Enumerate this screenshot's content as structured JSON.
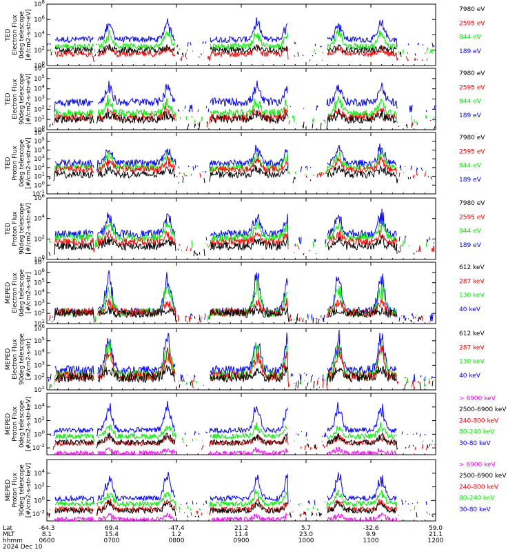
{
  "colors": {
    "black": "#000000",
    "red": "#ff0000",
    "green": "#00ee00",
    "blue": "#0000ff",
    "magenta": "#ff00ff"
  },
  "footer": {
    "row_labels": [
      "Lat",
      "MLT",
      "hhmm",
      "2024 Dec 10"
    ],
    "columns": [
      {
        "lat": "-64.3",
        "mlt": "8.1",
        "hhmm": "0600"
      },
      {
        "lat": "69.4",
        "mlt": "15.4",
        "hhmm": "0700"
      },
      {
        "lat": "-47.4",
        "mlt": "1.2",
        "hhmm": "0800"
      },
      {
        "lat": "21.2",
        "mlt": "11.4",
        "hhmm": "0900"
      },
      {
        "lat": "5.7",
        "mlt": "23.0",
        "hhmm": "1000"
      },
      {
        "lat": "-32.6",
        "mlt": "9.9",
        "hhmm": "1100"
      },
      {
        "lat": "59.0",
        "mlt": "21.1",
        "hhmm": "1200"
      }
    ]
  },
  "chart_data": [
    {
      "type": "line",
      "ylabel": [
        "TED",
        "Electron Flux",
        "0deg telescope",
        "[#/cm2-s-str-eV]"
      ],
      "ylim": [
        1,
        100000000
      ],
      "yscale": "log",
      "yticks": [
        {
          "exp": "0"
        },
        {
          "exp": "2"
        },
        {
          "exp": "4"
        },
        {
          "exp": "6"
        },
        {
          "exp": "8"
        }
      ],
      "series": [
        {
          "name": "7980 eV",
          "color": "black"
        },
        {
          "name": "2595 eV",
          "color": "red"
        },
        {
          "name": "844 eV",
          "color": "green"
        },
        {
          "name": "189 eV",
          "color": "blue"
        }
      ],
      "baseline": [
        2.0,
        1.5,
        2.5,
        3.4
      ],
      "bursts": [
        0.4,
        0.8,
        1.8,
        2.2
      ],
      "xrange": [
        "0600",
        "1200"
      ]
    },
    {
      "type": "line",
      "ylabel": [
        "TED",
        "Electron Flux",
        "90deg telescope",
        "[#/cm2-s-str-eV]"
      ],
      "ylim": [
        1,
        1000000
      ],
      "yscale": "log",
      "yticks": [
        {
          "exp": "0"
        },
        {
          "exp": "1"
        },
        {
          "exp": "2"
        },
        {
          "exp": "3"
        },
        {
          "exp": "4"
        },
        {
          "exp": "5"
        },
        {
          "exp": "6"
        }
      ],
      "series": [
        {
          "name": "7980 eV",
          "color": "black"
        },
        {
          "name": "2595 eV",
          "color": "red"
        },
        {
          "name": "844 eV",
          "color": "green"
        },
        {
          "name": "189 eV",
          "color": "blue"
        }
      ],
      "baseline": [
        1.0,
        1.2,
        1.6,
        2.7
      ],
      "bursts": [
        0.5,
        0.8,
        1.3,
        1.5
      ],
      "xrange": [
        "0600",
        "1200"
      ]
    },
    {
      "type": "line",
      "ylabel": [
        "TED",
        "Proton Flux",
        "0deg telescope",
        "[#/cm2-s-str-eV]"
      ],
      "ylim": [
        0.1,
        1000000
      ],
      "yscale": "log",
      "yticks": [
        {
          "exp": "-1"
        },
        {
          "exp": "0"
        },
        {
          "exp": "1"
        },
        {
          "exp": "2"
        },
        {
          "exp": "3"
        },
        {
          "exp": "4"
        },
        {
          "exp": "5"
        },
        {
          "exp": "6"
        }
      ],
      "series": [
        {
          "name": "7980 eV",
          "color": "black"
        },
        {
          "name": "2595 eV",
          "color": "red"
        },
        {
          "name": "844 eV",
          "color": "green"
        },
        {
          "name": "189 eV",
          "color": "blue"
        }
      ],
      "baseline": [
        1.2,
        1.8,
        2.0,
        2.5
      ],
      "bursts": [
        0.8,
        1.0,
        1.6,
        1.8
      ],
      "xrange": [
        "0600",
        "1200"
      ]
    },
    {
      "type": "line",
      "ylabel": [
        "TED",
        "Proton Flux",
        "90deg telescope",
        "[#/cm2-s-str-eV]"
      ],
      "ylim": [
        1,
        1000000
      ],
      "yscale": "log",
      "yticks": [
        {
          "exp": "0"
        },
        {
          "exp": "2"
        },
        {
          "exp": "4"
        },
        {
          "exp": "6"
        }
      ],
      "series": [
        {
          "name": "7980 eV",
          "color": "black"
        },
        {
          "name": "2595 eV",
          "color": "red"
        },
        {
          "name": "844 eV",
          "color": "green"
        },
        {
          "name": "189 eV",
          "color": "blue"
        }
      ],
      "baseline": [
        1.3,
        1.7,
        2.1,
        2.5
      ],
      "bursts": [
        0.6,
        0.8,
        1.4,
        1.8
      ],
      "xrange": [
        "0600",
        "1200"
      ]
    },
    {
      "type": "line",
      "ylabel": [
        "MEPED",
        "Electron Flux",
        "0deg telescope",
        "[#/cm2-s-str]"
      ],
      "ylim": [
        10,
        10000000
      ],
      "yscale": "log",
      "yticks": [
        {
          "exp": "1"
        },
        {
          "exp": "2"
        },
        {
          "exp": "3"
        },
        {
          "exp": "4"
        },
        {
          "exp": "5"
        },
        {
          "exp": "6"
        },
        {
          "exp": "7"
        }
      ],
      "series": [
        {
          "name": "612 keV",
          "color": "black"
        },
        {
          "name": "287 keV",
          "color": "red"
        },
        {
          "name": "130 keV",
          "color": "green"
        },
        {
          "name": "40 keV",
          "color": "blue"
        }
      ],
      "baseline": [
        2.0,
        2.1,
        2.1,
        2.2
      ],
      "bursts": [
        0.3,
        1.0,
        2.5,
        3.5
      ],
      "xrange": [
        "0600",
        "1200"
      ]
    },
    {
      "type": "line",
      "ylabel": [
        "MEPED",
        "Electron Flux",
        "90deg telescope",
        "[#/cm2-s-str]"
      ],
      "ylim": [
        10,
        1000000
      ],
      "yscale": "log",
      "yticks": [
        {
          "exp": "1"
        },
        {
          "exp": "2"
        },
        {
          "exp": "3"
        },
        {
          "exp": "4"
        },
        {
          "exp": "5"
        },
        {
          "exp": "6"
        }
      ],
      "series": [
        {
          "name": "612 keV",
          "color": "black"
        },
        {
          "name": "287 keV",
          "color": "red"
        },
        {
          "name": "130 keV",
          "color": "green"
        },
        {
          "name": "40 keV",
          "color": "blue"
        }
      ],
      "baseline": [
        2.0,
        2.1,
        2.2,
        2.6
      ],
      "bursts": [
        0.8,
        2.0,
        2.3,
        2.6
      ],
      "xrange": [
        "0600",
        "1200"
      ]
    },
    {
      "type": "line",
      "ylabel": [
        "MEPED",
        "Proton Flux",
        "0deg telescope",
        "[#/cm2-s-str-keV]"
      ],
      "ylim": [
        0.001,
        1000000
      ],
      "yscale": "log",
      "yticks": [
        {
          "exp": "-2"
        },
        {
          "exp": "0"
        },
        {
          "exp": "2"
        },
        {
          "exp": "4"
        }
      ],
      "series": [
        {
          "name": "> 6900 keV",
          "color": "magenta"
        },
        {
          "name": "2500-6900 keV",
          "color": "black"
        },
        {
          "name": "240-800 keV",
          "color": "red"
        },
        {
          "name": "80-240 keV",
          "color": "green"
        },
        {
          "name": "30-80 keV",
          "color": "blue"
        }
      ],
      "baseline": [
        -2.8,
        -1.2,
        -1.3,
        -0.3,
        0.6
      ],
      "bursts": [
        0.6,
        1.0,
        1.0,
        1.5,
        3.5
      ],
      "xrange": [
        "0600",
        "1200"
      ]
    },
    {
      "type": "line",
      "ylabel": [
        "MEPED",
        "Proton Flux",
        "90deg telescope",
        "[#/cm2-s-str-keV]"
      ],
      "ylim": [
        0.001,
        1000000
      ],
      "yscale": "log",
      "yticks": [
        {
          "exp": "-2"
        },
        {
          "exp": "0"
        },
        {
          "exp": "2"
        },
        {
          "exp": "4"
        }
      ],
      "series": [
        {
          "name": "> 6900 keV",
          "color": "magenta"
        },
        {
          "name": "2500-6900 keV",
          "color": "black"
        },
        {
          "name": "240-800 keV",
          "color": "red"
        },
        {
          "name": "80-240 keV",
          "color": "green"
        },
        {
          "name": "30-80 keV",
          "color": "blue"
        }
      ],
      "baseline": [
        -2.8,
        -1.5,
        -1.3,
        -0.5,
        0.3
      ],
      "bursts": [
        0.7,
        1.2,
        1.2,
        1.8,
        3.3
      ],
      "xrange": [
        "0600",
        "1200"
      ]
    }
  ]
}
